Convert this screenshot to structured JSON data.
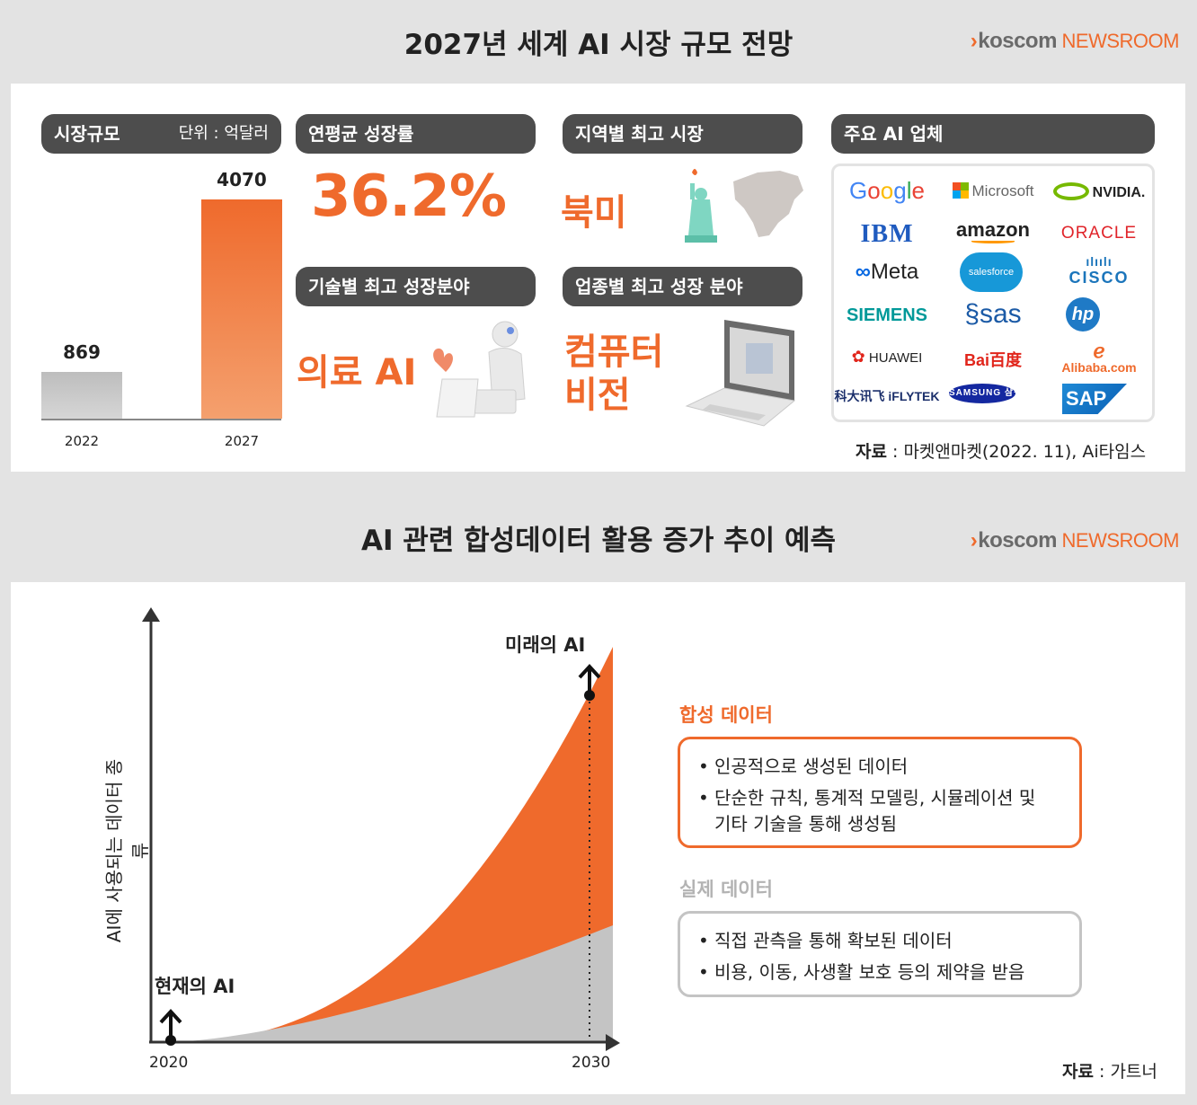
{
  "top": {
    "title": "2027년 세계 AI 시장 규모 전망",
    "brand": {
      "arrow": "›",
      "name": "koscom",
      "suffix": "NEWSROOM"
    },
    "market_size": {
      "label": "시장규모",
      "unit": "단위 : 억달러"
    },
    "cagr": {
      "label": "연평균 성장률",
      "value": "36.2%"
    },
    "region": {
      "label": "지역별 최고 시장",
      "value": "북미"
    },
    "tech": {
      "label": "기술별 최고 성장분야",
      "value": "의료 AI"
    },
    "industry": {
      "label": "업종별 최고 성장 분야",
      "value_line1": "컴퓨터",
      "value_line2": "비전"
    },
    "companies": {
      "label": "주요 AI 업체",
      "logos": [
        "Google",
        "Microsoft",
        "NVIDIA.",
        "IBM",
        "amazon",
        "ORACLE",
        "Meta",
        "salesforce",
        "CISCO",
        "SIEMENS",
        "sas",
        "hp",
        "HUAWEI",
        "Bai百度",
        "Alibaba.com",
        "科大讯飞 iFLYTEK",
        "SAMSUNG 삼성전자",
        "SAP"
      ]
    },
    "source": {
      "label": "자료",
      "text": " : 마켓앤마켓(2022. 11), Ai타임스"
    }
  },
  "bottom": {
    "title": "AI 관련 합성데이터 활용 증가 추이 예측",
    "brand": {
      "arrow": "›",
      "name": "koscom",
      "suffix": "NEWSROOM"
    },
    "ylabel": "AI에 사용되는 데이터 종류",
    "annot_now": "현재의 AI",
    "annot_future": "미래의 AI",
    "synthetic": {
      "title": "합성 데이터",
      "items": [
        "인공적으로 생성된 데이터",
        "단순한 규칙, 통계적 모델링, 시뮬레이션 및 기타 기술을 통해 생성됨"
      ]
    },
    "real": {
      "title": "실제 데이터",
      "items": [
        "직접 관측을 통해 확보된 데이터",
        "비용, 이동, 사생활 보호 등의 제약을 받음"
      ]
    },
    "source": {
      "label": "자료",
      "text": " : 가트너"
    }
  },
  "chart_data": [
    {
      "type": "bar",
      "categories": [
        "2022",
        "2027"
      ],
      "values": [
        869,
        4070
      ],
      "colors": [
        "#c4c4c4",
        "#ef6a2c"
      ]
    },
    {
      "type": "area",
      "x": [
        2020,
        2030
      ],
      "xticks": [
        "2020",
        "2030"
      ],
      "series": [
        {
          "name": "실제 데이터",
          "color": "#c4c4c4"
        },
        {
          "name": "합성 데이터",
          "color": "#ef6a2c"
        }
      ]
    }
  ],
  "colors": {
    "accent": "#ef6a2c",
    "pill": "#4d4d4d",
    "real": "#c4c4c4"
  }
}
